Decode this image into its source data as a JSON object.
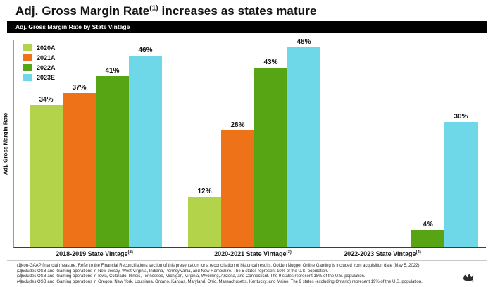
{
  "slide": {
    "title": {
      "pre": "Adj. Gross Margin Rate",
      "sup": "(1)",
      "post": " increases as states mature"
    },
    "header_bar": {
      "label": "Adj. Gross Margin Rate by State Vintage",
      "bg": "#000000",
      "text_color": "#ffffff"
    }
  },
  "chart_data": {
    "type": "bar",
    "title": "Adj. Gross Margin Rate by State Vintage",
    "xlabel": "",
    "ylabel": "Adj. Gross Margin Rate",
    "ylim": [
      0,
      50
    ],
    "grid": false,
    "legend_position": "top-left",
    "value_label_format": "{v}%",
    "categories": [
      {
        "label": "2018-2019 State Vintage",
        "sup": "(2)"
      },
      {
        "label": "2020-2021 State Vintage",
        "sup": "(3)"
      },
      {
        "label": "2022-2023 State Vintage",
        "sup": "(4)"
      }
    ],
    "series": [
      {
        "name": "2020A",
        "color": "#b3d44a",
        "values": [
          34,
          12,
          null
        ]
      },
      {
        "name": "2021A",
        "color": "#ee7318",
        "values": [
          37,
          28,
          null
        ]
      },
      {
        "name": "2022A",
        "color": "#57a414",
        "values": [
          41,
          43,
          4
        ]
      },
      {
        "name": "2023E",
        "color": "#6fd8e8",
        "values": [
          46,
          48,
          30
        ]
      }
    ]
  },
  "footnotes": [
    {
      "num": "(1)",
      "text": "Non-GAAP financial measure. Refer to the Financial Reconciliations section of this presentation for a reconciliation of historical results. Golden Nugget Online Gaming is included from acquisition date (May 5, 2022)."
    },
    {
      "num": "(2)",
      "text": "Includes OSB and iGaming operations in New Jersey, West Virginia, Indiana, Pennsylvania, and New Hampshire. The 5 states represent 10% of the U.S. population."
    },
    {
      "num": "(3)",
      "text": "Includes OSB and iGaming operations in Iowa, Colorado, Illinois, Tennessee, Michigan, Virginia, Wyoming, Arizona, and Connecticut. The 9 states represent 18% of the U.S. population."
    },
    {
      "num": "(4)",
      "text": "Includes OSB and iGaming operations in Oregon, New York, Louisiana, Ontario, Kansas, Maryland, Ohio, Massachusetts, Kentucky, and Maine. The 9 states (excluding Ontario) represent 19% of the U.S. population."
    }
  ],
  "logo": {
    "name": "draftkings-crown-logo"
  }
}
